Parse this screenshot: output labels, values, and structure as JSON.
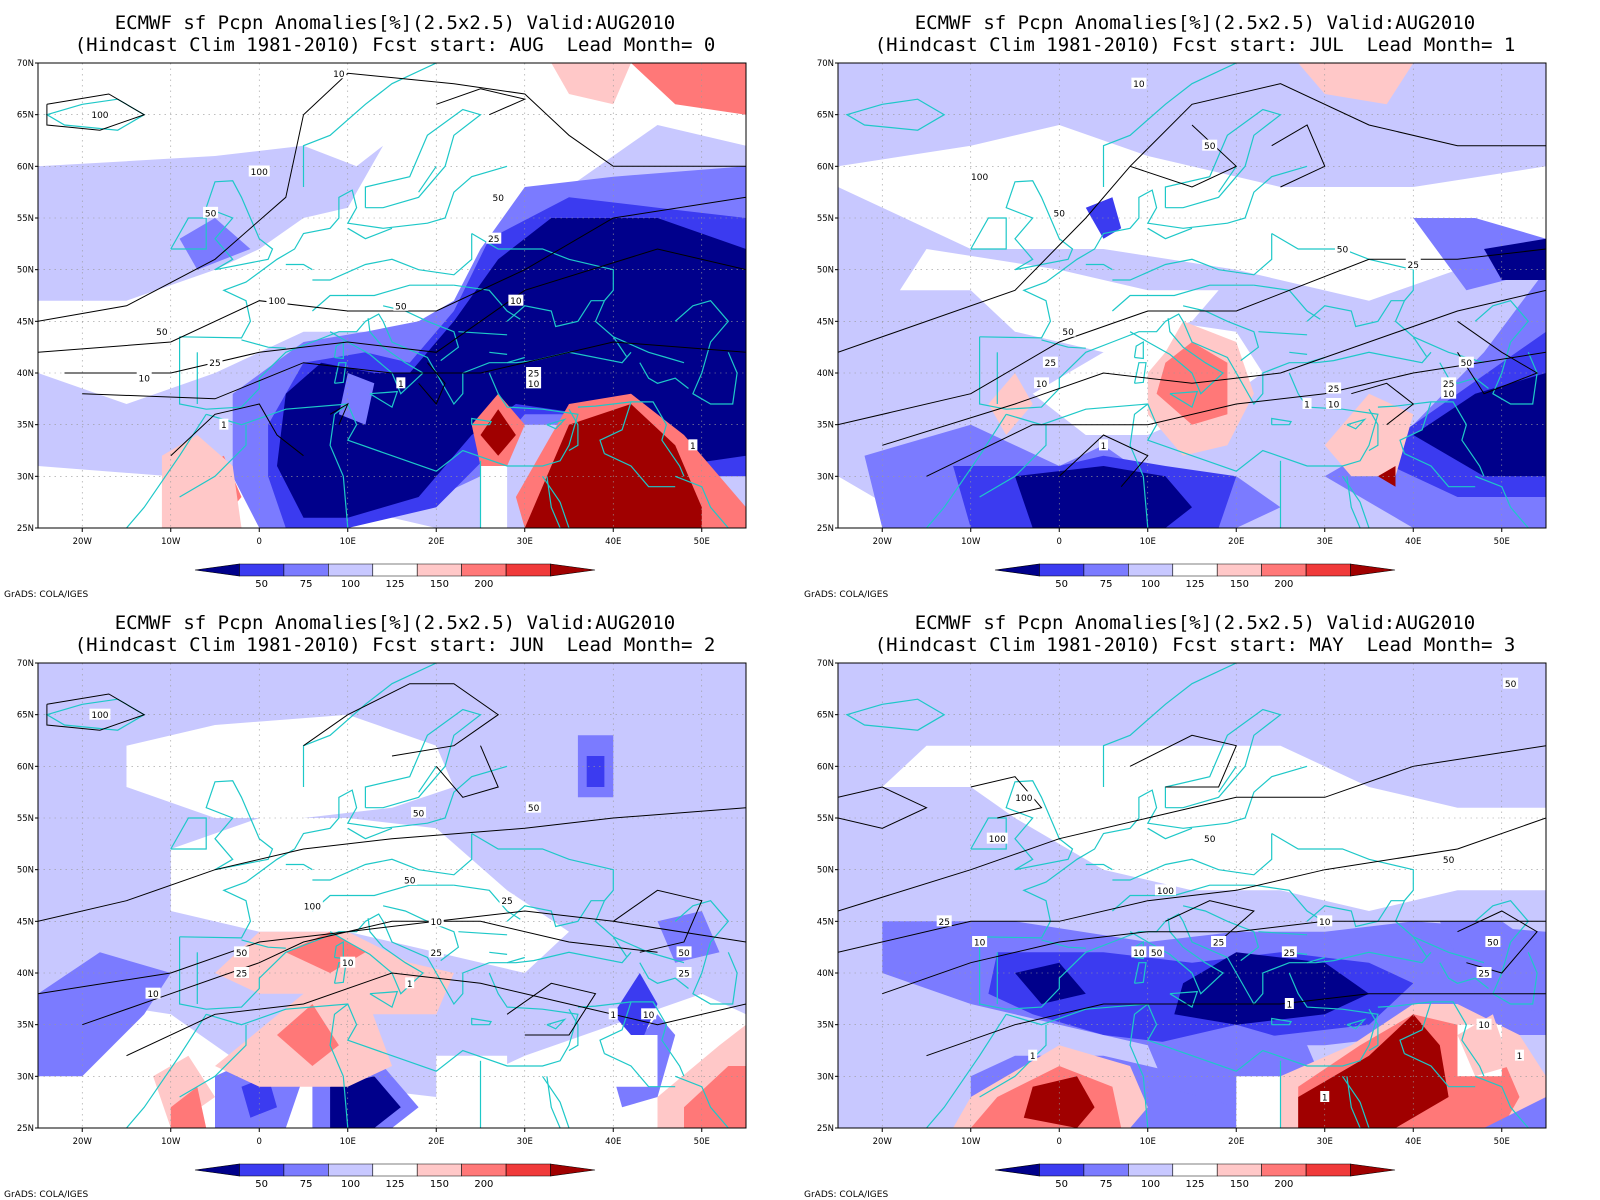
{
  "credit": "GrADS: COLA/IGES",
  "colorbar": {
    "labels": [
      "50",
      "75",
      "100",
      "125",
      "150",
      "200"
    ],
    "colors": [
      "#00008b",
      "#3b3bf0",
      "#7b7bff",
      "#c8c8ff",
      "#ffffff",
      "#ffc8c8",
      "#ff7878",
      "#f03a3a",
      "#a00000"
    ]
  },
  "axes": {
    "lon_labels": [
      "20W",
      "10W",
      "0",
      "10E",
      "20E",
      "30E",
      "40E",
      "50E"
    ],
    "lat_labels": [
      "70N",
      "65N",
      "60N",
      "55N",
      "50N",
      "45N",
      "40N",
      "35N",
      "30N",
      "25N"
    ]
  },
  "panels": [
    {
      "title1": "ECMWF sf Pcpn Anomalies[%](2.5x2.5) Valid:AUG2010",
      "title2": "(Hindcast Clim 1981-2010) Fcst start: AUG  Lead Month= 0",
      "contour_labels": [
        "100",
        "100",
        "10",
        "50",
        "50",
        "25",
        "10",
        "100",
        "50",
        "50",
        "25",
        "10",
        "1",
        "1",
        "25",
        "10",
        "1"
      ]
    },
    {
      "title1": "ECMWF sf Pcpn Anomalies[%](2.5x2.5) Valid:AUG2010",
      "title2": "(Hindcast Clim 1981-2010) Fcst start: JUL  Lead Month= 1",
      "contour_labels": [
        "10",
        "50",
        "100",
        "50",
        "50",
        "25",
        "50",
        "25",
        "10",
        "1",
        "25",
        "10",
        "1",
        "50",
        "25",
        "10"
      ]
    },
    {
      "title1": "ECMWF sf Pcpn Anomalies[%](2.5x2.5) Valid:AUG2010",
      "title2": "(Hindcast Clim 1981-2010) Fcst start: JUN  Lead Month= 2",
      "contour_labels": [
        "100",
        "50",
        "50",
        "50",
        "100",
        "25",
        "10",
        "50",
        "25",
        "10",
        "25",
        "10",
        "1",
        "1",
        "50",
        "25",
        "10"
      ]
    },
    {
      "title1": "ECMWF sf Pcpn Anomalies[%](2.5x2.5) Valid:AUG2010",
      "title2": "(Hindcast Clim 1981-2010) Fcst start: MAY  Lead Month= 3",
      "contour_labels": [
        "50",
        "100",
        "100",
        "50",
        "50",
        "100",
        "25",
        "10",
        "25",
        "10",
        "50",
        "25",
        "10",
        "1",
        "1",
        "1",
        "50",
        "25",
        "10",
        "1"
      ]
    }
  ]
}
